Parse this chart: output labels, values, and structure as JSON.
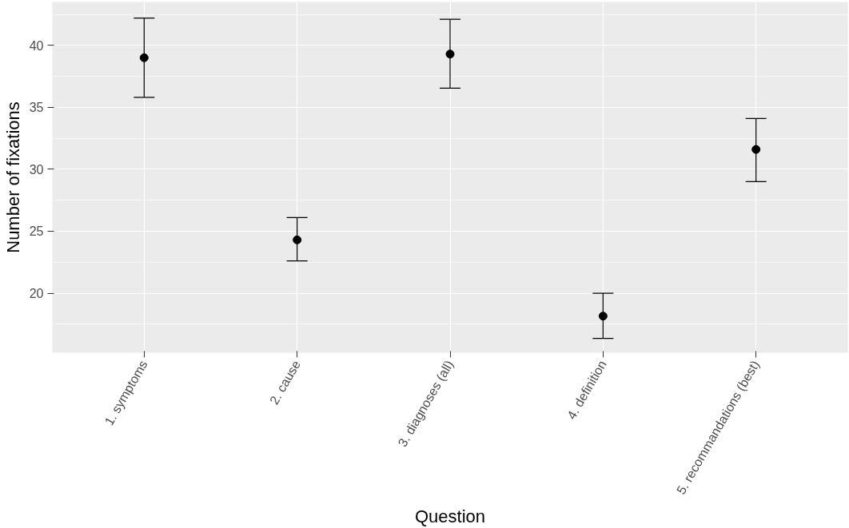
{
  "chart_data": {
    "type": "scatter",
    "xlabel": "Question",
    "ylabel": "Number of fixations",
    "categories": [
      "1. symptoms",
      "2. cause",
      "3. diagnoses (all)",
      "4. definition",
      "5. recommandations (best)"
    ],
    "values": [
      39.0,
      24.3,
      39.3,
      18.15,
      31.6
    ],
    "errors": [
      [
        35.8,
        42.2
      ],
      [
        22.6,
        26.1
      ],
      [
        36.55,
        42.1
      ],
      [
        16.35,
        20.0
      ],
      [
        29.0,
        34.1
      ]
    ],
    "color": "#000000",
    "marker": "circle",
    "ylim": [
      15.2,
      43.5
    ],
    "yticks": [
      20,
      25,
      30,
      35,
      40
    ],
    "grid": true
  }
}
